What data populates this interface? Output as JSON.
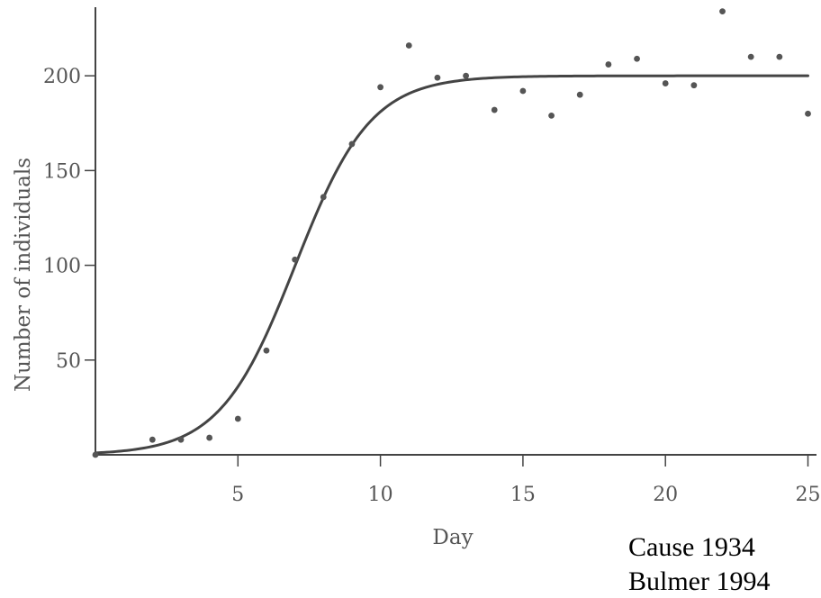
{
  "chart_data": {
    "type": "scatter",
    "title": "",
    "xlabel": "Day",
    "ylabel": "Number of individuals",
    "xlim": [
      0,
      25.3
    ],
    "ylim": [
      0,
      240
    ],
    "xticks": [
      5,
      10,
      15,
      20,
      25
    ],
    "yticks": [
      50,
      100,
      150,
      200
    ],
    "grid": false,
    "legend": "none",
    "series": [
      {
        "kind": "points",
        "x": [
          0,
          2,
          3,
          4,
          5,
          6,
          7,
          8,
          9,
          10,
          11,
          12,
          13,
          14,
          15,
          16,
          17,
          18,
          19,
          20,
          21,
          22,
          23,
          24,
          25
        ],
        "y": [
          0,
          8,
          8,
          9,
          19,
          55,
          103,
          136,
          164,
          194,
          216,
          199,
          200,
          182,
          192,
          179,
          190,
          206,
          209,
          196,
          195,
          234,
          210,
          210,
          180
        ]
      },
      {
        "kind": "curve",
        "model": "logistic",
        "carrying_capacity": 200,
        "initial_value": 1,
        "rate": 0.755,
        "x_range": [
          0,
          25
        ]
      }
    ],
    "colors": {
      "points": "#555555",
      "curve": "#444444",
      "axis": "#444444"
    }
  },
  "citations": [
    "Cause 1934",
    "Bulmer 1994"
  ]
}
